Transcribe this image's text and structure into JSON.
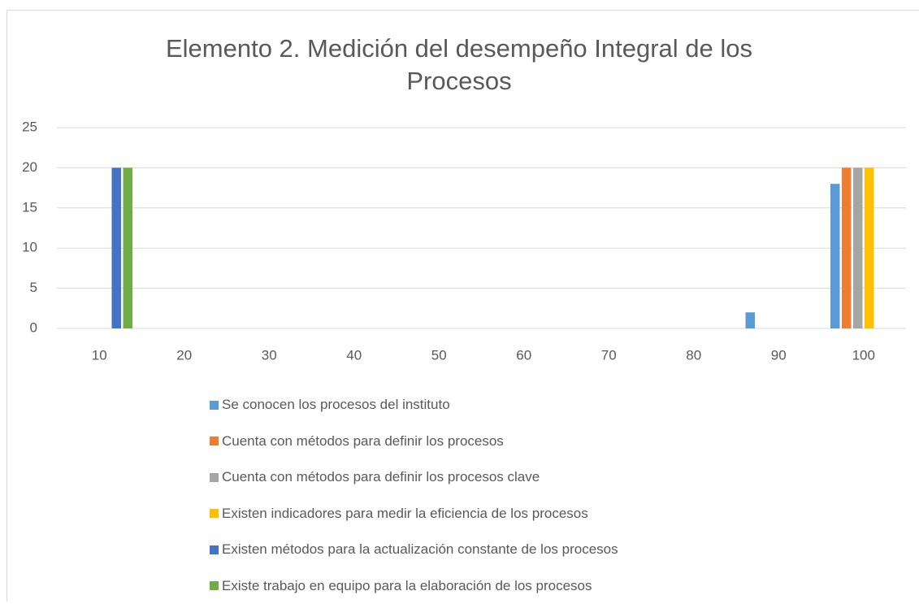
{
  "chart_data": {
    "type": "bar",
    "title": "Elemento 2. Medición del desempeño Integral de los Procesos",
    "categories": [
      "10",
      "20",
      "30",
      "40",
      "50",
      "60",
      "70",
      "80",
      "90",
      "100"
    ],
    "series": [
      {
        "name": "Se conocen los procesos del instituto",
        "color": "#5b9bd5",
        "values": [
          0,
          0,
          0,
          0,
          0,
          0,
          0,
          0,
          2,
          18
        ]
      },
      {
        "name": "Cuenta con métodos para definir los procesos",
        "color": "#ed7d31",
        "values": [
          0,
          0,
          0,
          0,
          0,
          0,
          0,
          0,
          0,
          20
        ]
      },
      {
        "name": "Cuenta con métodos para definir los procesos clave",
        "color": "#a5a5a5",
        "values": [
          0,
          0,
          0,
          0,
          0,
          0,
          0,
          0,
          0,
          20
        ]
      },
      {
        "name": "Existen indicadores para medir la eficiencia de los procesos",
        "color": "#ffc000",
        "values": [
          0,
          0,
          0,
          0,
          0,
          0,
          0,
          0,
          0,
          20
        ]
      },
      {
        "name": "Existen métodos para la actualización constante de los procesos",
        "color": "#4472c4",
        "values": [
          20,
          0,
          0,
          0,
          0,
          0,
          0,
          0,
          0,
          0
        ]
      },
      {
        "name": "Existe trabajo en equipo para la elaboración de los procesos",
        "color": "#70ad47",
        "values": [
          20,
          0,
          0,
          0,
          0,
          0,
          0,
          0,
          0,
          0
        ]
      }
    ],
    "ylim": [
      0,
      25
    ],
    "yticks": [
      0,
      5,
      10,
      15,
      20,
      25
    ],
    "grid": true,
    "legend": "bottom"
  }
}
